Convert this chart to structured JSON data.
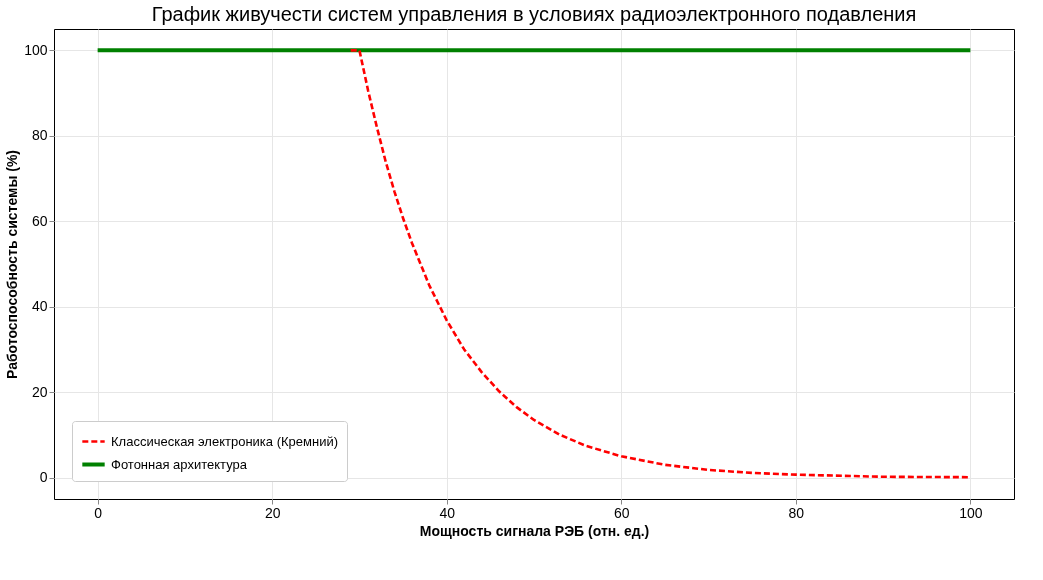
{
  "chart_data": {
    "type": "line",
    "title": "График живучести систем управления в условиях радиоэлектронного подавления",
    "xlabel": "Мощность сигнала РЭБ (отн. ед.)",
    "ylabel": "Работоспособность системы (%)",
    "xlim": [
      -5,
      105
    ],
    "ylim": [
      -5,
      105
    ],
    "xticks": [
      0,
      20,
      40,
      60,
      80,
      100
    ],
    "yticks": [
      0,
      20,
      40,
      60,
      80,
      100
    ],
    "grid": true,
    "legend": "bottom left",
    "series": [
      {
        "name": "Классическая электроника (Кремний)",
        "color": "#ff0000",
        "line_style": "dashed",
        "x": [
          29,
          30,
          31,
          32,
          33,
          34,
          35,
          36,
          38,
          40,
          42,
          44,
          46,
          48,
          50,
          53,
          56,
          60,
          65,
          70,
          75,
          80,
          90,
          100
        ],
        "values": [
          100,
          100,
          90.5,
          82,
          74,
          67,
          60.7,
          55,
          45,
          36.8,
          30,
          24.7,
          20.2,
          16.5,
          13.5,
          10,
          7.4,
          5,
          3,
          1.8,
          1.1,
          0.7,
          0.2,
          0.1
        ]
      },
      {
        "name": "Фотонная архитектура",
        "color": "#008000",
        "line_style": "solid",
        "x": [
          0,
          100
        ],
        "values": [
          100,
          100
        ]
      }
    ]
  }
}
